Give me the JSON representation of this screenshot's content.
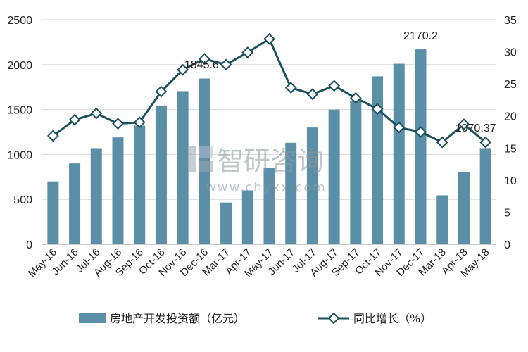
{
  "chart_data": {
    "type": "bar+line",
    "categories": [
      "May-16",
      "Jun-16",
      "Jul-16",
      "Aug-16",
      "Sep-16",
      "Oct-16",
      "Nov-16",
      "Dec-16",
      "Mar-17",
      "Apr-17",
      "May-17",
      "Jun-17",
      "Jul-17",
      "Aug-17",
      "Sep-17",
      "Oct-17",
      "Nov-17",
      "Dec-17",
      "Mar-18",
      "Apr-18",
      "May-18"
    ],
    "series": [
      {
        "name": "房地产开发投资额（亿元）",
        "kind": "bar",
        "axis": "left",
        "values": [
          700,
          900,
          1070,
          1190,
          1320,
          1545,
          1705,
          1845.6,
          465,
          600,
          850,
          1130,
          1300,
          1500,
          1600,
          1870,
          2010,
          2170.2,
          545,
          800,
          1070.37
        ]
      },
      {
        "name": "同比增长（%）",
        "kind": "line",
        "axis": "right",
        "values": [
          16.9,
          19.4,
          20.4,
          18.8,
          19.0,
          23.8,
          27.2,
          28.9,
          28.0,
          29.9,
          32.0,
          24.4,
          23.4,
          24.7,
          22.8,
          21.1,
          18.2,
          17.5,
          15.9,
          18.7,
          15.9
        ]
      }
    ],
    "ylim_left": [
      0,
      2500
    ],
    "yticks_left": [
      "0",
      "500",
      "1000",
      "1500",
      "2000",
      "2500"
    ],
    "ylim_right": [
      0,
      35
    ],
    "yticks_right": [
      "0",
      "5",
      "10",
      "15",
      "20",
      "25",
      "30",
      "35"
    ],
    "data_labels": [
      {
        "category": "Dec-16",
        "text": "1845.6"
      },
      {
        "category": "Dec-17",
        "text": "2170.2"
      },
      {
        "category": "May-18",
        "text": "1070.37"
      }
    ],
    "grid": "horizontal",
    "legend_position": "bottom",
    "colors": {
      "bar": "#5b8fa8",
      "line": "#1b5060",
      "marker_fill": "#ffffff"
    }
  },
  "watermark": {
    "logo_text": "智研咨询",
    "url_text": "www.chyxx.com"
  }
}
